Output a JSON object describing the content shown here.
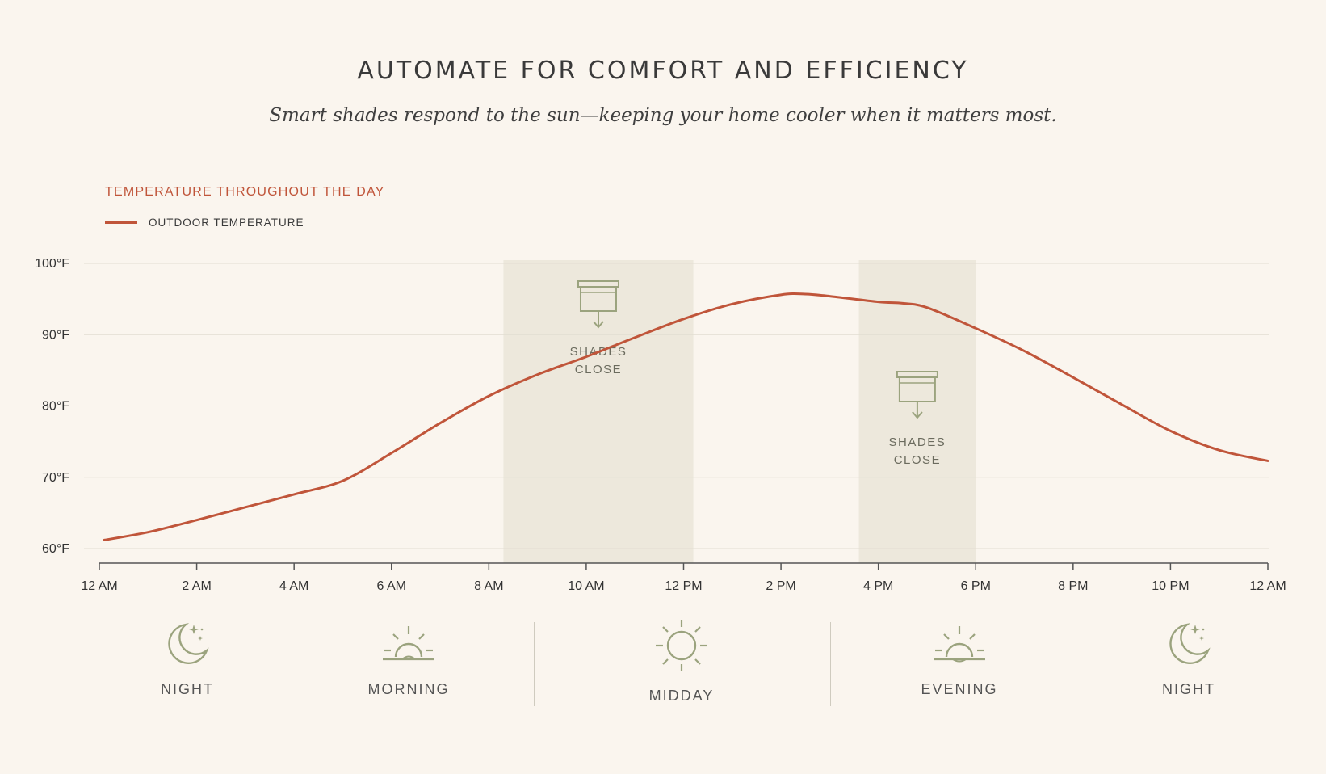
{
  "header": {
    "title": "AUTOMATE FOR COMFORT AND EFFICIENCY",
    "subtitle": "Smart shades respond to the sun—keeping your home cooler when it matters most."
  },
  "chart_label": "TEMPERATURE THROUGHOUT THE DAY",
  "colors": {
    "background": "#faf5ee",
    "line": "#c0553a",
    "shade_band": "#ede8dc",
    "icon": "#9ba37e",
    "grid": "#e2ddd2"
  },
  "chart_data": {
    "type": "line",
    "title": "TEMPERATURE THROUGHOUT THE DAY",
    "xlabel": "",
    "ylabel": "",
    "legend": "top-left",
    "grid": true,
    "xlim": [
      0,
      24
    ],
    "ylim": [
      60,
      100
    ],
    "x_ticks": [
      {
        "x": 0,
        "label": "12 AM"
      },
      {
        "x": 2,
        "label": "2 AM"
      },
      {
        "x": 4,
        "label": "4 AM"
      },
      {
        "x": 6,
        "label": "6 AM"
      },
      {
        "x": 8,
        "label": "8 AM"
      },
      {
        "x": 10,
        "label": "10 AM"
      },
      {
        "x": 12,
        "label": "12 PM"
      },
      {
        "x": 14,
        "label": "2 PM"
      },
      {
        "x": 16,
        "label": "4 PM"
      },
      {
        "x": 18,
        "label": "6 PM"
      },
      {
        "x": 20,
        "label": "8 PM"
      },
      {
        "x": 22,
        "label": "10 PM"
      },
      {
        "x": 24,
        "label": "12 AM"
      }
    ],
    "y_ticks": [
      {
        "y": 100,
        "label": "100°F"
      },
      {
        "y": 90,
        "label": "90°F"
      },
      {
        "y": 80,
        "label": "80°F"
      },
      {
        "y": 70,
        "label": "70°F"
      },
      {
        "y": 60,
        "label": "60°F"
      }
    ],
    "series": [
      {
        "name": "OUTDOOR TEMPERATURE",
        "x": [
          0.1,
          1,
          2,
          3,
          4,
          5,
          6,
          7,
          8,
          9,
          10,
          11,
          12,
          13,
          14,
          14.5,
          15,
          16,
          16.5,
          17,
          18,
          19,
          20,
          21,
          22,
          23,
          24
        ],
        "y": [
          61.2,
          62.3,
          64.0,
          65.8,
          67.6,
          69.5,
          73.4,
          77.6,
          81.4,
          84.4,
          86.9,
          89.6,
          92.2,
          94.3,
          95.6,
          95.7,
          95.4,
          94.6,
          94.4,
          93.8,
          90.9,
          87.7,
          84.0,
          80.2,
          76.5,
          73.8,
          72.3
        ]
      }
    ],
    "shaded_regions": [
      {
        "x_start": 8.3,
        "x_end": 12.2,
        "label_line1": "SHADES",
        "label_line2": "CLOSE"
      },
      {
        "x_start": 15.6,
        "x_end": 18.0,
        "label_line1": "SHADES",
        "label_line2": "CLOSE"
      }
    ]
  },
  "periods": [
    {
      "label": "NIGHT",
      "icon": "moon-icon"
    },
    {
      "label": "MORNING",
      "icon": "sunrise-icon"
    },
    {
      "label": "MIDDAY",
      "icon": "sun-icon"
    },
    {
      "label": "EVENING",
      "icon": "sunset-icon"
    },
    {
      "label": "NIGHT",
      "icon": "moon-icon"
    }
  ]
}
